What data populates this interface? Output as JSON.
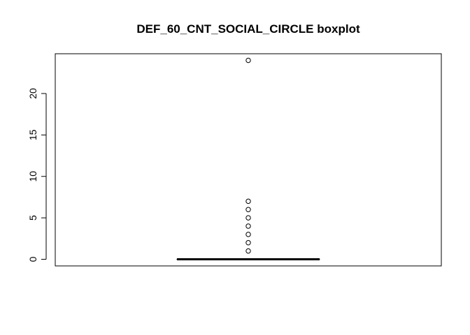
{
  "chart_data": {
    "type": "boxplot",
    "title": "DEF_60_CNT_SOCIAL_CIRCLE boxplot",
    "xlabel": "",
    "ylabel": "",
    "ylim": [
      -0.8,
      24.8
    ],
    "y_ticks": [
      0,
      5,
      10,
      15,
      20
    ],
    "y_tick_labels": [
      "0",
      "5",
      "10",
      "15",
      "20"
    ],
    "grid": false,
    "box": {
      "min": 0,
      "q1": 0,
      "median": 0,
      "q3": 0,
      "max": 0
    },
    "outliers": [
      1,
      2,
      3,
      4,
      5,
      6,
      7,
      24
    ]
  }
}
